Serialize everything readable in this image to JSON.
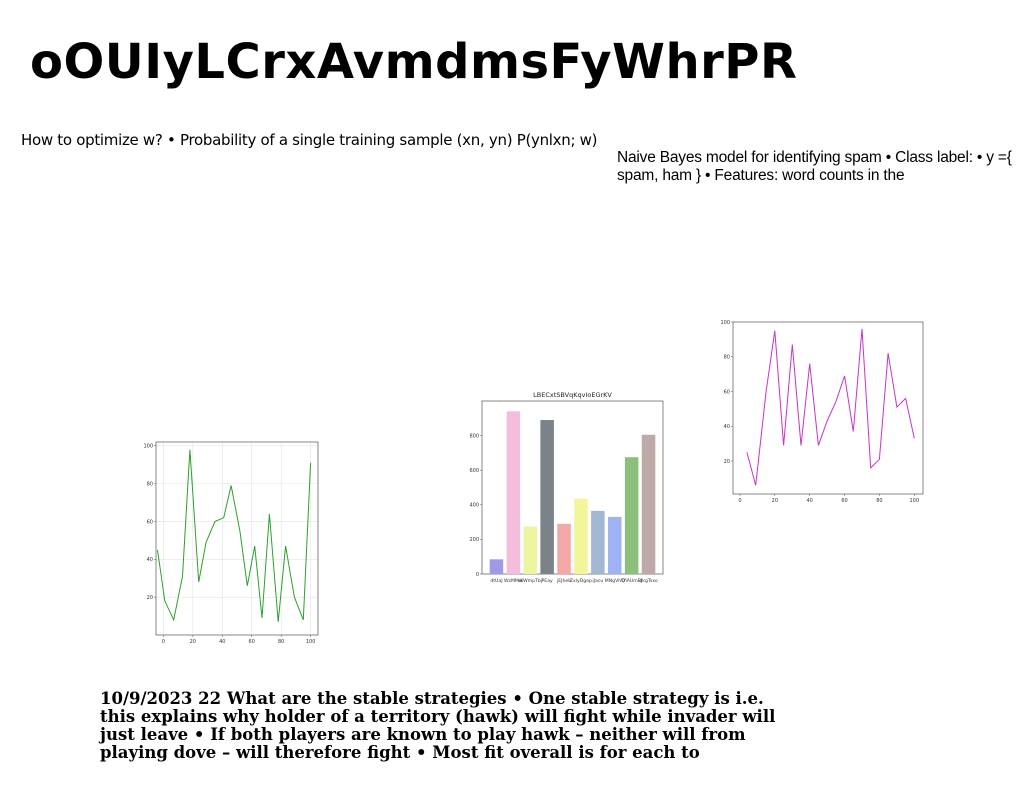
{
  "title": "oOUIyLCrxAvmdmsFyWhrPR",
  "text_blocks": {
    "top_left": "How to optimize w? • Probability of a single training sample (xn, yn) P(ynlxn; w)",
    "top_right": "Naive Bayes model for identifying spam • Class label: • y ={ spam, ham } • Features: word counts in the",
    "bottom": "10/9/2023 22 What are the stable strategies • One stable strategy is i.e. this explains why holder of a territory (hawk) will fight while invader will just leave • If both players are known to play hawk – neither will from playing dove – will therefore fight • Most fit overall is for each to"
  },
  "chart_data": [
    {
      "type": "line",
      "title": "",
      "color": "#2ca02c",
      "grid": true,
      "xlim": [
        -5,
        105
      ],
      "ylim": [
        0,
        102
      ],
      "xticks": [
        0,
        20,
        40,
        60,
        80,
        100
      ],
      "yticks": [
        20,
        40,
        60,
        80,
        100
      ],
      "series": [
        {
          "x": [
            -4,
            1,
            7,
            13,
            18,
            24,
            29,
            35,
            41,
            46,
            52,
            57,
            62,
            67,
            72,
            78,
            83,
            89,
            95,
            100
          ],
          "y": [
            45,
            18,
            8,
            31,
            98,
            28,
            49,
            60,
            62,
            79,
            55,
            26,
            47,
            9,
            64,
            7,
            47,
            20,
            8,
            91
          ]
        }
      ]
    },
    {
      "type": "bar",
      "title": "LBECxtSBVqKqvIoEGrKV",
      "ylim": [
        0,
        1000
      ],
      "yticks": [
        0,
        200,
        400,
        600,
        800
      ],
      "categories": [
        "dtUaJ",
        "WzMMw",
        "rKWmpTbj",
        "PEay",
        "jEJheb",
        "ZxlyDgep",
        "iJacu",
        "MNgVhQ",
        "TfiAUmBJ",
        "dkgTsxo"
      ],
      "values": [
        85,
        940,
        275,
        890,
        290,
        435,
        365,
        330,
        675,
        805
      ],
      "colors": [
        "#9f9ae8",
        "#f4bddc",
        "#eef59f",
        "#7b8389",
        "#f4a7a7",
        "#f3f59a",
        "#a2b8d2",
        "#9fb3f2",
        "#8cbf7c",
        "#bfa8a8"
      ]
    },
    {
      "type": "line",
      "title": "",
      "color": "#c933c9",
      "grid": false,
      "xlim": [
        -4,
        105
      ],
      "ylim": [
        1,
        100
      ],
      "xticks": [
        0,
        20,
        40,
        60,
        80,
        100
      ],
      "yticks": [
        20,
        40,
        60,
        80,
        100
      ],
      "series": [
        {
          "x": [
            4,
            9,
            15,
            20,
            25,
            30,
            35,
            40,
            45,
            50,
            55,
            60,
            65,
            70,
            75,
            80,
            85,
            90,
            95,
            100
          ],
          "y": [
            25,
            6,
            60,
            95,
            29,
            87,
            29,
            76,
            29,
            43,
            54,
            69,
            37,
            96,
            16,
            21,
            82,
            51,
            56,
            33
          ]
        }
      ]
    }
  ]
}
